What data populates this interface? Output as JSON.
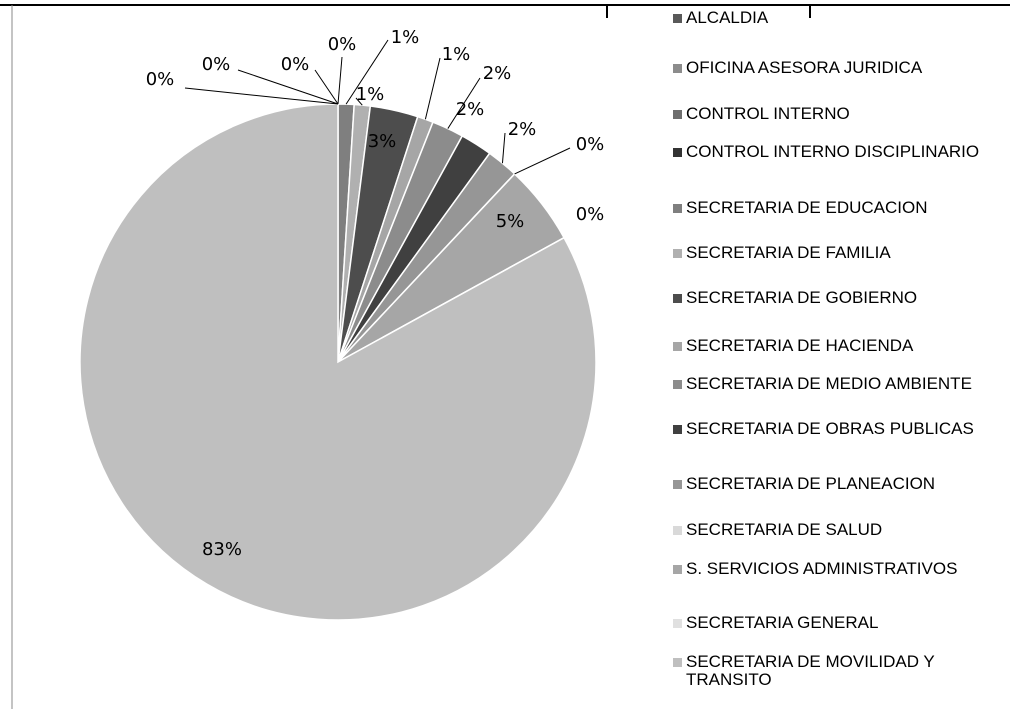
{
  "chart_data": {
    "type": "pie",
    "categories": [
      "ALCALDIA",
      "OFICINA ASESORA JURIDICA",
      "CONTROL INTERNO",
      "CONTROL INTERNO DISCIPLINARIO",
      "SECRETARIA DE EDUCACION",
      "SECRETARIA DE FAMILIA",
      "SECRETARIA DE GOBIERNO",
      "SECRETARIA DE HACIENDA",
      "SECRETARIA DE MEDIO AMBIENTE",
      "SECRETARIA DE OBRAS PUBLICAS",
      "SECRETARIA DE PLANEACION",
      "SECRETARIA DE SALUD",
      "S. SERVICIOS ADMINISTRATIVOS",
      "SECRETARIA GENERAL",
      "SECRETARIA DE MOVILIDAD Y TRANSITO"
    ],
    "values": [
      0,
      0,
      0,
      0,
      1,
      1,
      3,
      1,
      2,
      2,
      2,
      0,
      5,
      0,
      83
    ],
    "value_labels": [
      "0%",
      "0%",
      "0%",
      "0%",
      "1%",
      "1%",
      "3%",
      "1%",
      "2%",
      "2%",
      "2%",
      "0%",
      "5%",
      "0%",
      "83%"
    ],
    "colors": [
      "#595959",
      "#8c8c8c",
      "#6e6e6e",
      "#333333",
      "#7f7f7f",
      "#b0b0b0",
      "#4d4d4d",
      "#a6a6a6",
      "#8c8c8c",
      "#404040",
      "#969696",
      "#d9d9d9",
      "#a6a6a6",
      "#e0e0e0",
      "#bfbfbf"
    ],
    "legend": "right"
  }
}
